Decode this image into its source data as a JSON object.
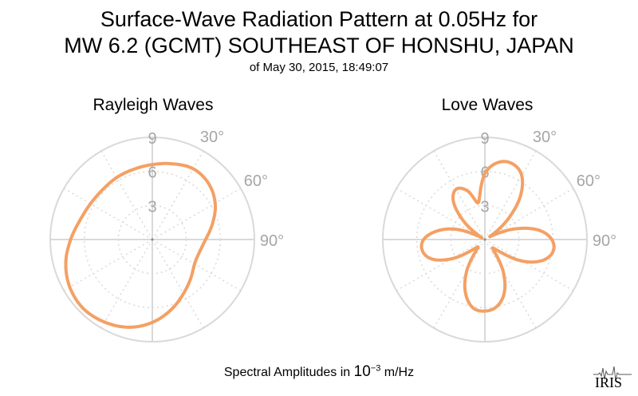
{
  "title_line1": "Surface-Wave Radiation Pattern at 0.05Hz for",
  "title_line2": "MW 6.2 (GCMT) SOUTHEAST OF HONSHU, JAPAN",
  "subtitle": "of May 30, 2015, 18:49:07",
  "caption": {
    "prefix": "Spectral Amplitudes in",
    "base": "10",
    "exponent": "−3",
    "unit": "m/Hz"
  },
  "logo_text": "IRIS",
  "colors": {
    "curve": "#f4a064",
    "grid": "#d9d9d9",
    "tick": "#a6a6a6"
  },
  "chart_data": [
    {
      "type": "polar-line",
      "title": "Rayleigh Waves",
      "radial_ticks": [
        "3",
        "6",
        "9"
      ],
      "radial_tick_values": [
        3,
        6,
        9
      ],
      "rmax": 9,
      "angle_ticks": [
        "30°",
        "60°",
        "90°"
      ],
      "angle_tick_values": [
        30,
        60,
        90
      ],
      "series": [
        {
          "angles": [
            0,
            15,
            30,
            45,
            60,
            75,
            90,
            105,
            120,
            135,
            150,
            165,
            180,
            195,
            210,
            225,
            240,
            255,
            270,
            285,
            300,
            315,
            330,
            345
          ],
          "values": [
            6.6,
            6.9,
            7.2,
            7.0,
            6.4,
            5.5,
            4.7,
            4.3,
            4.3,
            4.8,
            5.5,
            6.4,
            7.3,
            8.0,
            8.4,
            8.6,
            8.4,
            7.9,
            7.2,
            6.6,
            6.3,
            6.2,
            6.3,
            6.4
          ]
        }
      ]
    },
    {
      "type": "polar-line",
      "title": "Love Waves",
      "radial_ticks": [
        "3",
        "6",
        "9"
      ],
      "radial_tick_values": [
        3,
        6,
        9
      ],
      "rmax": 9,
      "angle_ticks": [
        "30°",
        "60°",
        "90°"
      ],
      "angle_tick_values": [
        30,
        60,
        90
      ],
      "series": [
        {
          "angles": [
            0,
            10,
            20,
            30,
            40,
            50,
            60,
            70,
            80,
            90,
            100,
            110,
            120,
            130,
            140,
            150,
            160,
            170,
            180,
            190,
            200,
            210,
            220,
            230,
            240,
            250,
            260,
            270,
            280,
            290,
            300,
            310,
            320,
            330,
            340,
            350
          ],
          "values": [
            5.8,
            6.9,
            7.1,
            6.5,
            4.8,
            2.4,
            0.5,
            2.7,
            4.8,
            5.9,
            6.1,
            5.4,
            3.8,
            1.6,
            1.1,
            3.2,
            5.0,
            6.0,
            6.3,
            6.1,
            5.0,
            3.2,
            1.0,
            1.4,
            3.4,
            5.0,
            5.6,
            5.4,
            4.3,
            2.6,
            0.3,
            2.3,
            4.3,
            5.1,
            4.6,
            3.3
          ]
        }
      ]
    }
  ]
}
